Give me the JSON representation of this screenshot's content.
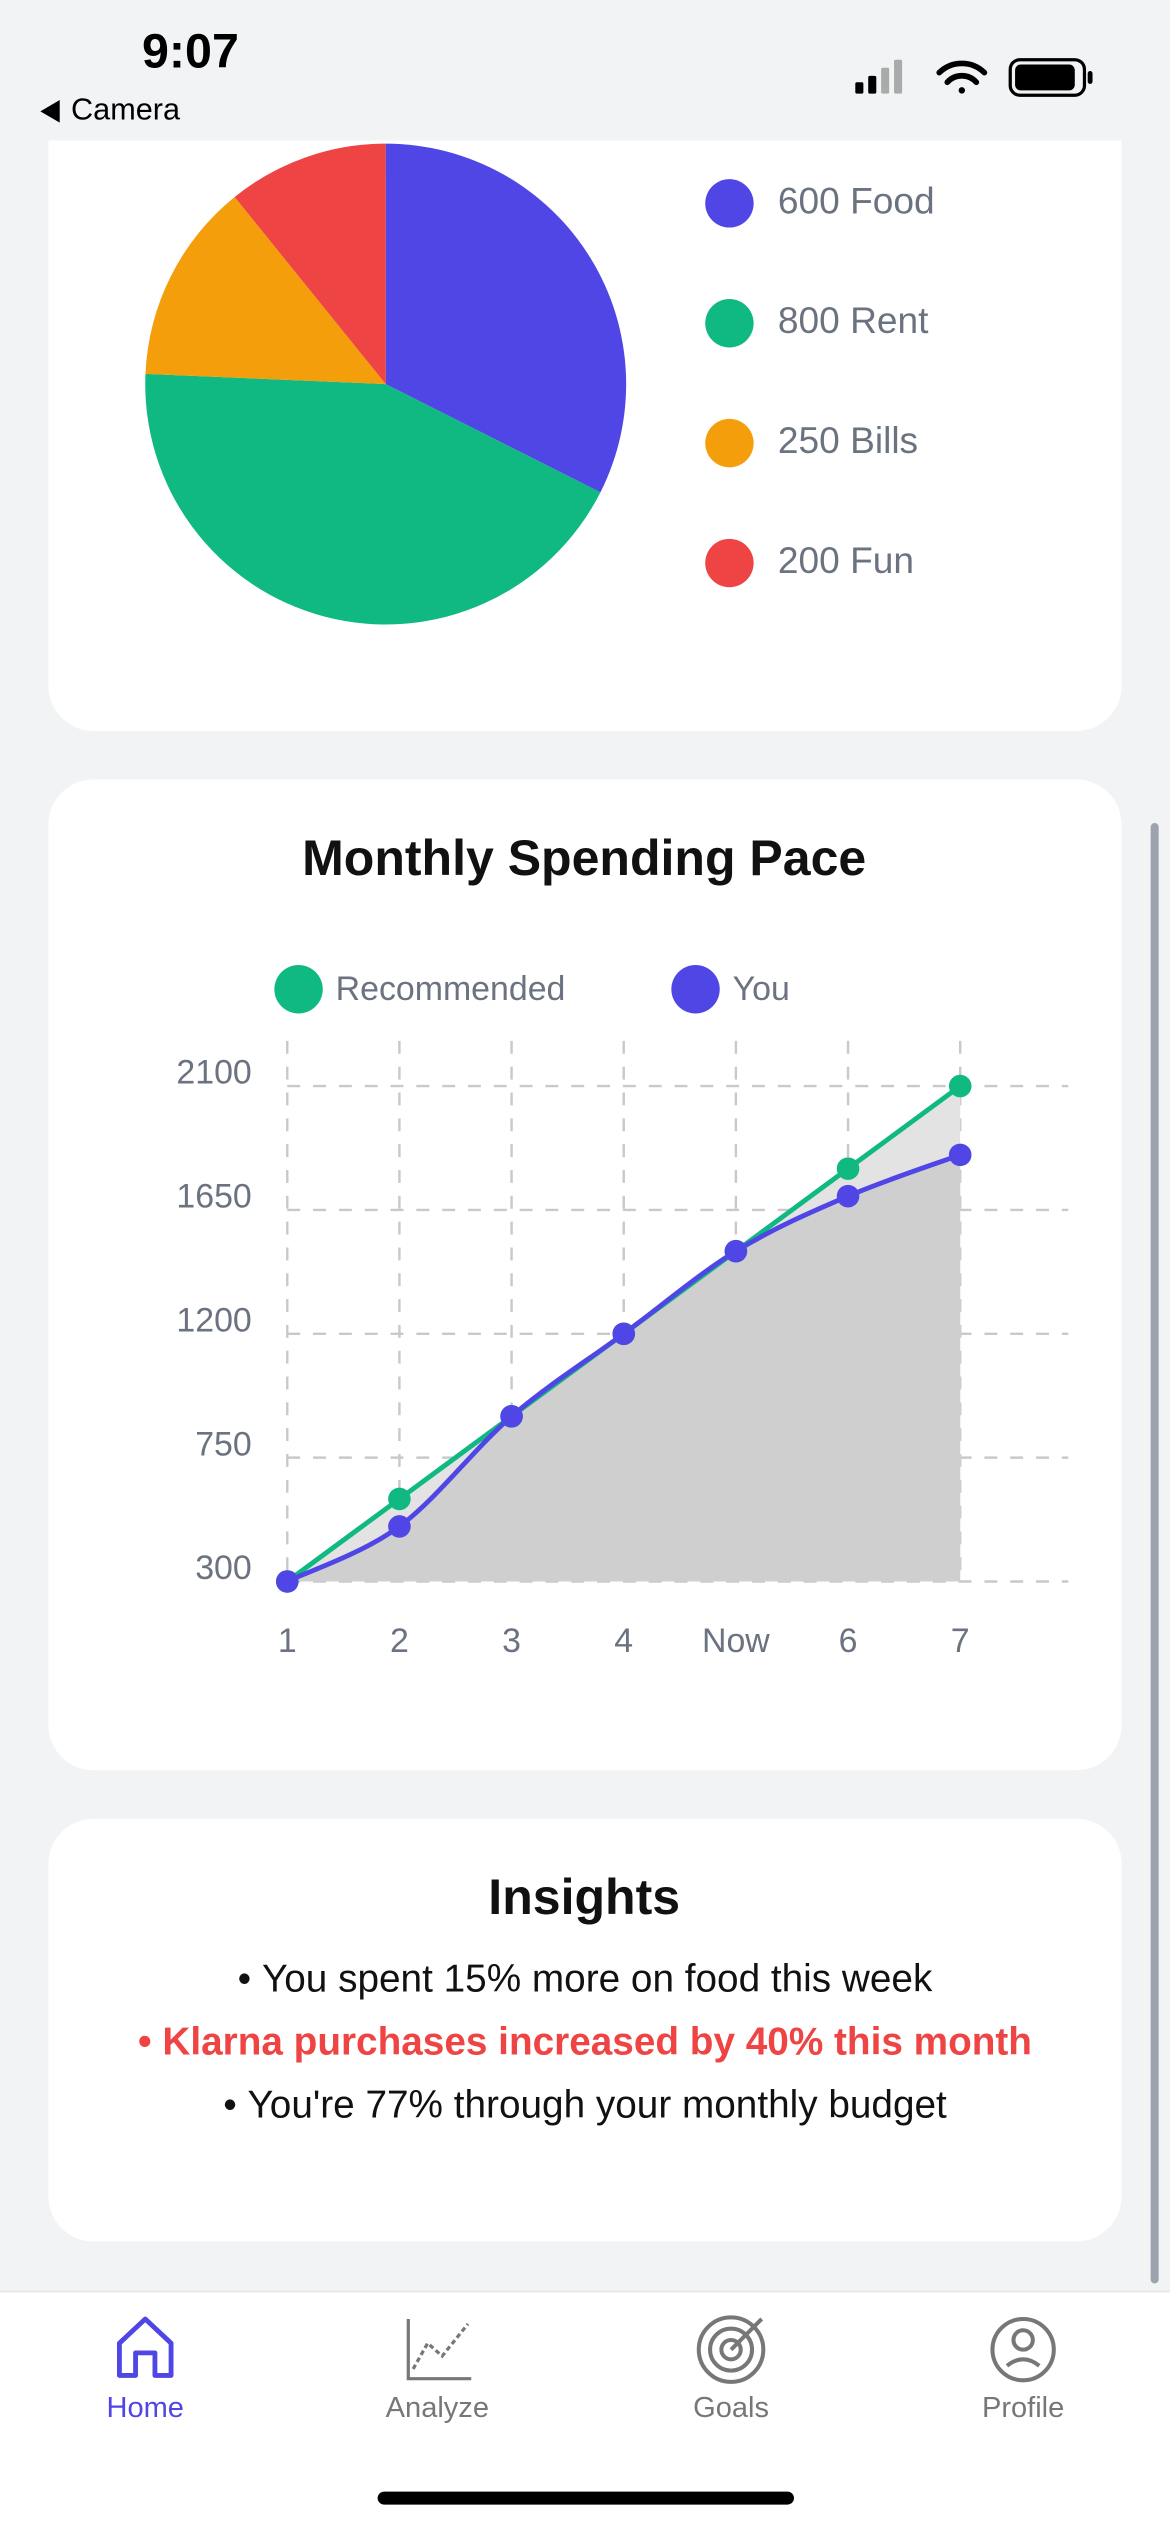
{
  "status_bar": {
    "time": "9:07",
    "back": "Camera"
  },
  "chart_data": [
    {
      "type": "pie",
      "categories": [
        "Food",
        "Rent",
        "Bills",
        "Fun"
      ],
      "values": [
        600,
        800,
        250,
        200
      ],
      "colors": [
        "#4f46e5",
        "#10b981",
        "#f59e0b",
        "#ef4444"
      ],
      "legend": "right"
    },
    {
      "type": "line",
      "title": "Monthly Spending Pace",
      "categories": [
        "1",
        "2",
        "3",
        "4",
        "Now",
        "6",
        "7"
      ],
      "series": [
        {
          "name": "Recommended",
          "color": "#10b981",
          "values": [
            300,
            600,
            900,
            1200,
            1500,
            1800,
            2100
          ]
        },
        {
          "name": "You",
          "color": "#4f46e5",
          "values": [
            300,
            500,
            900,
            1200,
            1500,
            1700,
            1850
          ]
        }
      ],
      "ylim": [
        300,
        2100
      ],
      "yticks": [
        300,
        750,
        1200,
        1650,
        2100
      ],
      "grid": true,
      "legend": "top"
    }
  ],
  "insights": {
    "title": "Insights",
    "items": [
      {
        "text": "You spent 15% more on food this week",
        "highlight": false
      },
      {
        "text": "Klarna purchases increased by 40% this month",
        "highlight": true
      },
      {
        "text": "You're 77% through your monthly budget",
        "highlight": false
      }
    ]
  },
  "tabs": {
    "items": [
      "Home",
      "Analyze",
      "Goals",
      "Profile"
    ],
    "active": 0
  }
}
